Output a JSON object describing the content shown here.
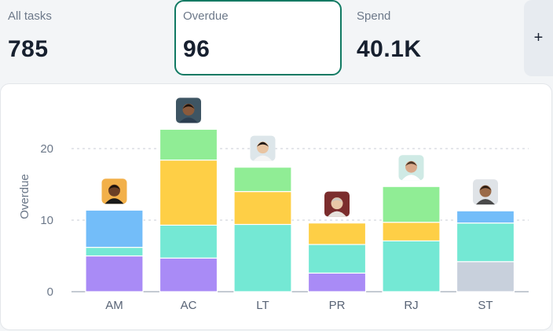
{
  "stats": [
    {
      "label": "All tasks",
      "value": "785"
    },
    {
      "label": "Overdue",
      "value": "96"
    },
    {
      "label": "Spend",
      "value": "40.1K"
    }
  ],
  "add_button_label": "+",
  "colors": {
    "purple": "#a98bf6",
    "teal": "#74e8d4",
    "blue": "#73bdf9",
    "yellow": "#fecf46",
    "green": "#90ed95",
    "gray": "#c8d0dc",
    "selected_border": "#117a63"
  },
  "chart_data": {
    "type": "bar",
    "stacked": true,
    "categories": [
      "AM",
      "AC",
      "LT",
      "PR",
      "RJ",
      "ST"
    ],
    "ylabel": "Overdue",
    "ylim": [
      0,
      25
    ],
    "yticks": [
      0,
      10,
      20
    ],
    "grid": "horizontal-dashed",
    "stacks": [
      [
        {
          "v": 5.0,
          "c": "purple"
        },
        {
          "v": 1.2,
          "c": "teal"
        },
        {
          "v": 5.2,
          "c": "blue"
        }
      ],
      [
        {
          "v": 4.7,
          "c": "purple"
        },
        {
          "v": 4.6,
          "c": "teal"
        },
        {
          "v": 9.1,
          "c": "yellow"
        },
        {
          "v": 4.3,
          "c": "green"
        }
      ],
      [
        {
          "v": 9.4,
          "c": "teal"
        },
        {
          "v": 4.6,
          "c": "yellow"
        },
        {
          "v": 3.4,
          "c": "green"
        }
      ],
      [
        {
          "v": 2.6,
          "c": "purple"
        },
        {
          "v": 4.0,
          "c": "teal"
        },
        {
          "v": 3.0,
          "c": "yellow"
        }
      ],
      [
        {
          "v": 7.1,
          "c": "teal"
        },
        {
          "v": 2.6,
          "c": "yellow"
        },
        {
          "v": 5.0,
          "c": "green"
        }
      ],
      [
        {
          "v": 4.2,
          "c": "gray"
        },
        {
          "v": 5.4,
          "c": "teal"
        },
        {
          "v": 1.7,
          "c": "blue"
        }
      ]
    ],
    "avatars": [
      "avatar-am",
      "avatar-ac",
      "avatar-lt",
      "avatar-pr",
      "avatar-rj",
      "avatar-st"
    ]
  }
}
